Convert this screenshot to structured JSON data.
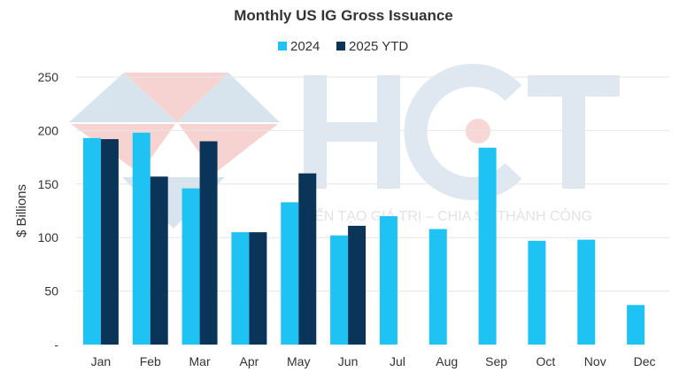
{
  "chart_data": {
    "type": "bar",
    "title": "Monthly US IG Gross Issuance",
    "ylabel": "$ Billions",
    "xlabel": "",
    "categories": [
      "Jan",
      "Feb",
      "Mar",
      "Apr",
      "May",
      "Jun",
      "Jul",
      "Aug",
      "Sep",
      "Oct",
      "Nov",
      "Dec"
    ],
    "series": [
      {
        "name": "2024",
        "color": "#1fc3f3",
        "values": [
          193,
          198,
          146,
          105,
          133,
          102,
          120,
          108,
          184,
          97,
          98,
          37
        ]
      },
      {
        "name": "2025 YTD",
        "color": "#0b3558",
        "values": [
          192,
          157,
          190,
          105,
          160,
          111,
          null,
          null,
          null,
          null,
          null,
          null
        ]
      }
    ],
    "ylim": [
      0,
      250
    ],
    "yticks": [
      "-",
      "50",
      "100",
      "150",
      "200",
      "250"
    ],
    "yticks_values": [
      0,
      50,
      100,
      150,
      200,
      250
    ],
    "grid": true,
    "legend": "top-center"
  },
  "watermark": {
    "logo_text": "HCT",
    "tagline": "KIẾN TẠO GIÁ TRỊ – CHIA SẺ THÀNH CÔNG"
  }
}
